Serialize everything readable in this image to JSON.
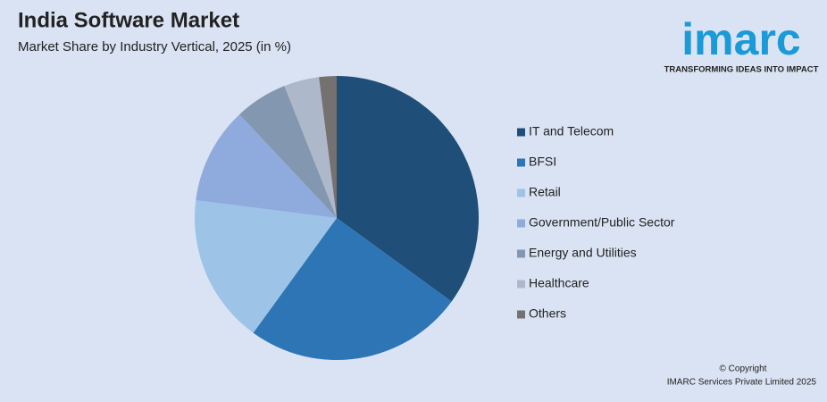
{
  "chart_data": {
    "type": "pie",
    "title": "India Software Market",
    "subtitle": "Market Share by Industry Vertical, 2025 (in %)",
    "categories": [
      "IT and Telecom",
      "BFSI",
      "Retail",
      "Government/Public Sector",
      "Energy and Utilities",
      "Healthcare",
      "Others"
    ],
    "values": [
      35,
      25,
      17,
      11,
      6,
      4,
      2
    ],
    "colors": [
      "#1f4e79",
      "#2e75b6",
      "#9dc3e6",
      "#8faadc",
      "#8497b0",
      "#adb9ca",
      "#767171"
    ],
    "legend": "right"
  },
  "logo": {
    "name": "imarc",
    "tagline": "TRANSFORMING IDEAS INTO IMPACT"
  },
  "footer": {
    "copyright": "© Copyright",
    "company": "IMARC Services Private Limited 2025"
  }
}
